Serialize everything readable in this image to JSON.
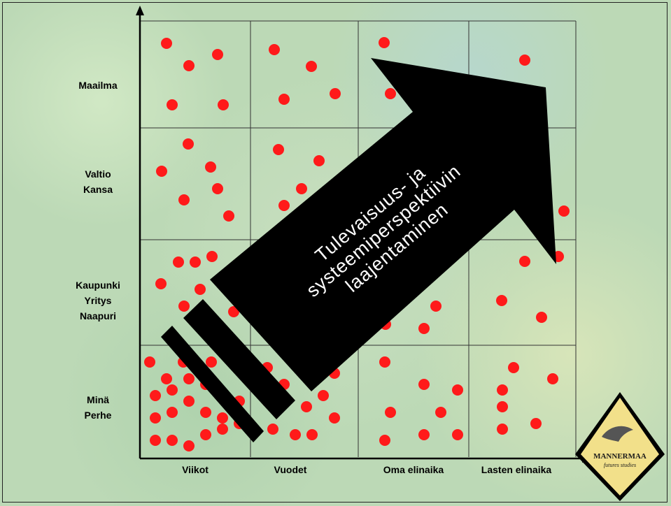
{
  "chart_data": {
    "type": "scatter",
    "row_labels": [
      [
        "Maailma"
      ],
      [
        "Valtio",
        "Kansa"
      ],
      [
        "Kaupunki",
        "Yritys",
        "Naapuri"
      ],
      [
        "Minä",
        "Perhe"
      ]
    ],
    "column_labels": [
      "Viikot",
      "Vuodet",
      "Oma elinaika",
      "Lasten elinaika"
    ],
    "dot_color": "#ff1a1a",
    "arrow_text": [
      "Tulevaisuus- ja",
      "systeemiperspektiivin",
      "laajentaminen"
    ]
  },
  "logo": {
    "name": "MANNERMAA",
    "subtitle": "futures studies",
    "fill_color": "#f2e08a"
  }
}
